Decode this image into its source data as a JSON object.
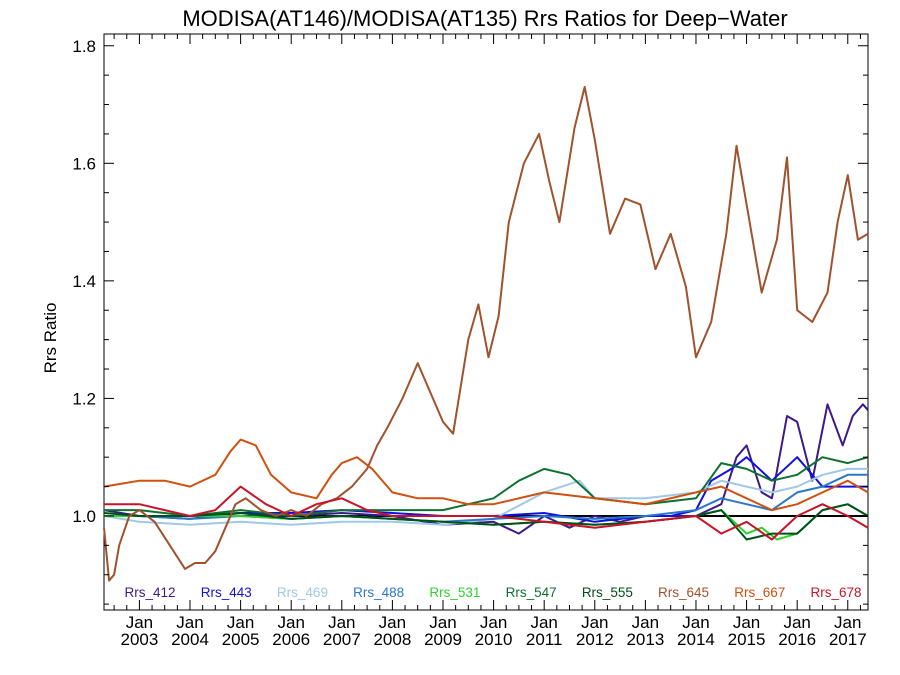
{
  "chart_data": {
    "type": "line",
    "title": "MODISA(AT146)/MODISA(AT135)  Rrs Ratios for Deep−Water",
    "xlabel": "",
    "ylabel": "Rrs Ratio",
    "xlim": [
      2002.3,
      2017.4
    ],
    "ylim": [
      0.84,
      1.82
    ],
    "x_tick_values": [
      2003,
      2004,
      2005,
      2006,
      2007,
      2008,
      2009,
      2010,
      2011,
      2012,
      2013,
      2014,
      2015,
      2016,
      2017
    ],
    "x_tick_month": "Jan",
    "x_tick_labels": [
      "2003",
      "2004",
      "2005",
      "2006",
      "2007",
      "2008",
      "2009",
      "2010",
      "2011",
      "2012",
      "2013",
      "2014",
      "2015",
      "2016",
      "2017"
    ],
    "y_ticks": [
      1.0,
      1.2,
      1.4,
      1.6,
      1.8
    ],
    "y_tick_labels": [
      "1.0",
      "1.2",
      "1.4",
      "1.6",
      "1.8"
    ],
    "reference_line": 1.0,
    "legend_placement": "bottom, single row inside plot",
    "series": [
      {
        "name": "Rrs_412",
        "color": "#3c1a8c",
        "x": [
          2002.3,
          2003.0,
          2004.0,
          2005.0,
          2006.0,
          2007.0,
          2008.0,
          2009.0,
          2010.0,
          2010.5,
          2011.0,
          2011.5,
          2012.0,
          2012.5,
          2013.0,
          2013.5,
          2014.0,
          2014.5,
          2014.8,
          2015.0,
          2015.3,
          2015.5,
          2015.8,
          2016.0,
          2016.3,
          2016.6,
          2016.9,
          2017.1,
          2017.3,
          2017.4
        ],
        "y": [
          1.01,
          1.0,
          0.995,
          1.005,
          1.0,
          1.005,
          1.0,
          0.985,
          0.99,
          0.97,
          1.0,
          0.98,
          1.0,
          0.99,
          1.0,
          1.0,
          1.0,
          1.02,
          1.1,
          1.12,
          1.04,
          1.03,
          1.17,
          1.16,
          1.06,
          1.19,
          1.12,
          1.17,
          1.19,
          1.18
        ]
      },
      {
        "name": "Rrs_443",
        "color": "#1010e0",
        "x": [
          2002.3,
          2003.0,
          2004.0,
          2005.0,
          2006.0,
          2007.0,
          2008.0,
          2009.0,
          2010.0,
          2011.0,
          2012.0,
          2013.0,
          2013.5,
          2014.0,
          2014.3,
          2014.7,
          2015.0,
          2015.5,
          2016.0,
          2016.5,
          2017.0,
          2017.4
        ],
        "y": [
          1.0,
          1.0,
          1.0,
          1.005,
          1.005,
          1.01,
          1.005,
          1.0,
          1.0,
          1.005,
          0.99,
          1.0,
          1.0,
          1.01,
          1.06,
          1.08,
          1.1,
          1.06,
          1.1,
          1.05,
          1.05,
          1.05
        ]
      },
      {
        "name": "Rrs_469",
        "color": "#a0c8e8",
        "x": [
          2002.3,
          2003.0,
          2004.0,
          2005.0,
          2006.0,
          2007.0,
          2008.0,
          2009.0,
          2010.0,
          2011.0,
          2011.7,
          2012.0,
          2013.0,
          2014.0,
          2014.5,
          2015.0,
          2015.5,
          2016.0,
          2016.5,
          2017.0,
          2017.4
        ],
        "y": [
          1.0,
          0.99,
          0.985,
          0.99,
          0.985,
          0.99,
          0.99,
          0.985,
          0.995,
          1.04,
          1.06,
          1.03,
          1.03,
          1.04,
          1.06,
          1.05,
          1.04,
          1.05,
          1.07,
          1.08,
          1.08
        ]
      },
      {
        "name": "Rrs_488",
        "color": "#2a78c8",
        "x": [
          2002.3,
          2003.0,
          2004.0,
          2005.0,
          2006.0,
          2007.0,
          2008.0,
          2009.0,
          2010.0,
          2011.0,
          2012.0,
          2013.0,
          2014.0,
          2014.5,
          2015.0,
          2015.5,
          2016.0,
          2016.5,
          2017.0,
          2017.4
        ],
        "y": [
          1.0,
          1.0,
          0.995,
          1.0,
          0.995,
          1.0,
          0.995,
          0.99,
          0.995,
          1.0,
          0.995,
          1.0,
          1.01,
          1.03,
          1.02,
          1.01,
          1.04,
          1.05,
          1.07,
          1.07
        ]
      },
      {
        "name": "Rrs_531",
        "color": "#30d030",
        "x": [
          2002.3,
          2003.0,
          2004.0,
          2005.0,
          2006.0,
          2007.0,
          2008.0,
          2009.0,
          2010.0,
          2011.0,
          2012.0,
          2013.0,
          2014.0,
          2014.5,
          2015.0,
          2015.3,
          2015.6,
          2016.0,
          2016.5,
          2017.0,
          2017.4
        ],
        "y": [
          1.0,
          1.0,
          1.0,
          1.0,
          0.995,
          1.0,
          0.995,
          0.99,
          0.985,
          0.99,
          0.985,
          0.99,
          1.0,
          1.01,
          0.97,
          0.98,
          0.96,
          0.97,
          1.01,
          1.02,
          1.0
        ]
      },
      {
        "name": "Rrs_547",
        "color": "#107030",
        "x": [
          2002.3,
          2003.0,
          2004.0,
          2005.0,
          2006.0,
          2007.0,
          2008.0,
          2009.0,
          2009.5,
          2010.0,
          2010.5,
          2011.0,
          2011.5,
          2012.0,
          2013.0,
          2014.0,
          2014.5,
          2015.0,
          2015.5,
          2016.0,
          2016.5,
          2017.0,
          2017.4
        ],
        "y": [
          1.01,
          1.01,
          1.0,
          1.01,
          1.0,
          1.01,
          1.01,
          1.01,
          1.02,
          1.03,
          1.06,
          1.08,
          1.07,
          1.03,
          1.02,
          1.03,
          1.09,
          1.08,
          1.06,
          1.07,
          1.1,
          1.09,
          1.1
        ]
      },
      {
        "name": "Rrs_555",
        "color": "#00501a",
        "x": [
          2002.3,
          2003.0,
          2004.0,
          2005.0,
          2006.0,
          2007.0,
          2008.0,
          2009.0,
          2010.0,
          2011.0,
          2012.0,
          2013.0,
          2014.0,
          2014.5,
          2015.0,
          2015.5,
          2016.0,
          2016.5,
          2017.0,
          2017.4
        ],
        "y": [
          1.005,
          1.0,
          1.0,
          1.005,
          0.995,
          1.0,
          0.995,
          0.99,
          0.985,
          0.99,
          0.985,
          0.99,
          1.0,
          1.01,
          0.96,
          0.97,
          0.97,
          1.01,
          1.02,
          1.0
        ]
      },
      {
        "name": "Rrs_645",
        "color": "#a0522d",
        "x": [
          2002.3,
          2002.4,
          2002.5,
          2002.6,
          2002.8,
          2003.0,
          2003.3,
          2003.6,
          2003.9,
          2004.1,
          2004.3,
          2004.5,
          2004.7,
          2004.9,
          2005.1,
          2005.4,
          2005.7,
          2006.0,
          2006.3,
          2006.6,
          2006.9,
          2007.2,
          2007.5,
          2007.7,
          2007.9,
          2008.2,
          2008.5,
          2008.8,
          2009.0,
          2009.2,
          2009.5,
          2009.7,
          2009.9,
          2010.1,
          2010.3,
          2010.6,
          2010.9,
          2011.1,
          2011.3,
          2011.6,
          2011.8,
          2012.0,
          2012.3,
          2012.6,
          2012.9,
          2013.2,
          2013.5,
          2013.8,
          2014.0,
          2014.3,
          2014.6,
          2014.8,
          2015.0,
          2015.3,
          2015.6,
          2015.8,
          2016.0,
          2016.3,
          2016.6,
          2016.8,
          2017.0,
          2017.2,
          2017.4
        ],
        "y": [
          0.98,
          0.89,
          0.9,
          0.95,
          1.0,
          1.01,
          0.99,
          0.95,
          0.91,
          0.92,
          0.92,
          0.94,
          0.98,
          1.02,
          1.03,
          1.01,
          1.0,
          1.01,
          1.0,
          1.02,
          1.03,
          1.05,
          1.08,
          1.12,
          1.15,
          1.2,
          1.26,
          1.2,
          1.16,
          1.14,
          1.3,
          1.36,
          1.27,
          1.34,
          1.5,
          1.6,
          1.65,
          1.57,
          1.5,
          1.66,
          1.73,
          1.64,
          1.48,
          1.54,
          1.53,
          1.42,
          1.48,
          1.39,
          1.27,
          1.33,
          1.48,
          1.63,
          1.53,
          1.38,
          1.47,
          1.61,
          1.35,
          1.33,
          1.38,
          1.5,
          1.58,
          1.47,
          1.48
        ]
      },
      {
        "name": "Rrs_667",
        "color": "#d05010",
        "x": [
          2002.3,
          2003.0,
          2003.5,
          2004.0,
          2004.5,
          2004.8,
          2005.0,
          2005.3,
          2005.6,
          2006.0,
          2006.5,
          2006.8,
          2007.0,
          2007.3,
          2007.6,
          2008.0,
          2008.5,
          2009.0,
          2009.5,
          2010.0,
          2011.0,
          2012.0,
          2013.0,
          2014.0,
          2014.5,
          2015.0,
          2015.5,
          2016.0,
          2016.5,
          2017.0,
          2017.4
        ],
        "y": [
          1.05,
          1.06,
          1.06,
          1.05,
          1.07,
          1.11,
          1.13,
          1.12,
          1.07,
          1.04,
          1.03,
          1.07,
          1.09,
          1.1,
          1.08,
          1.04,
          1.03,
          1.03,
          1.02,
          1.02,
          1.04,
          1.03,
          1.02,
          1.04,
          1.05,
          1.03,
          1.01,
          1.02,
          1.04,
          1.06,
          1.04
        ]
      },
      {
        "name": "Rrs_678",
        "color": "#c81428",
        "x": [
          2002.3,
          2003.0,
          2003.5,
          2004.0,
          2004.5,
          2005.0,
          2005.5,
          2006.0,
          2006.5,
          2007.0,
          2007.5,
          2008.0,
          2009.0,
          2010.0,
          2011.0,
          2012.0,
          2013.0,
          2014.0,
          2014.5,
          2015.0,
          2015.5,
          2016.0,
          2016.5,
          2017.0,
          2017.4
        ],
        "y": [
          1.02,
          1.02,
          1.01,
          1.0,
          1.01,
          1.05,
          1.02,
          1.0,
          1.02,
          1.03,
          1.01,
          1.0,
          1.0,
          1.0,
          0.99,
          0.98,
          0.99,
          1.0,
          0.97,
          0.99,
          0.96,
          1.0,
          1.02,
          1.0,
          0.98
        ]
      }
    ]
  }
}
